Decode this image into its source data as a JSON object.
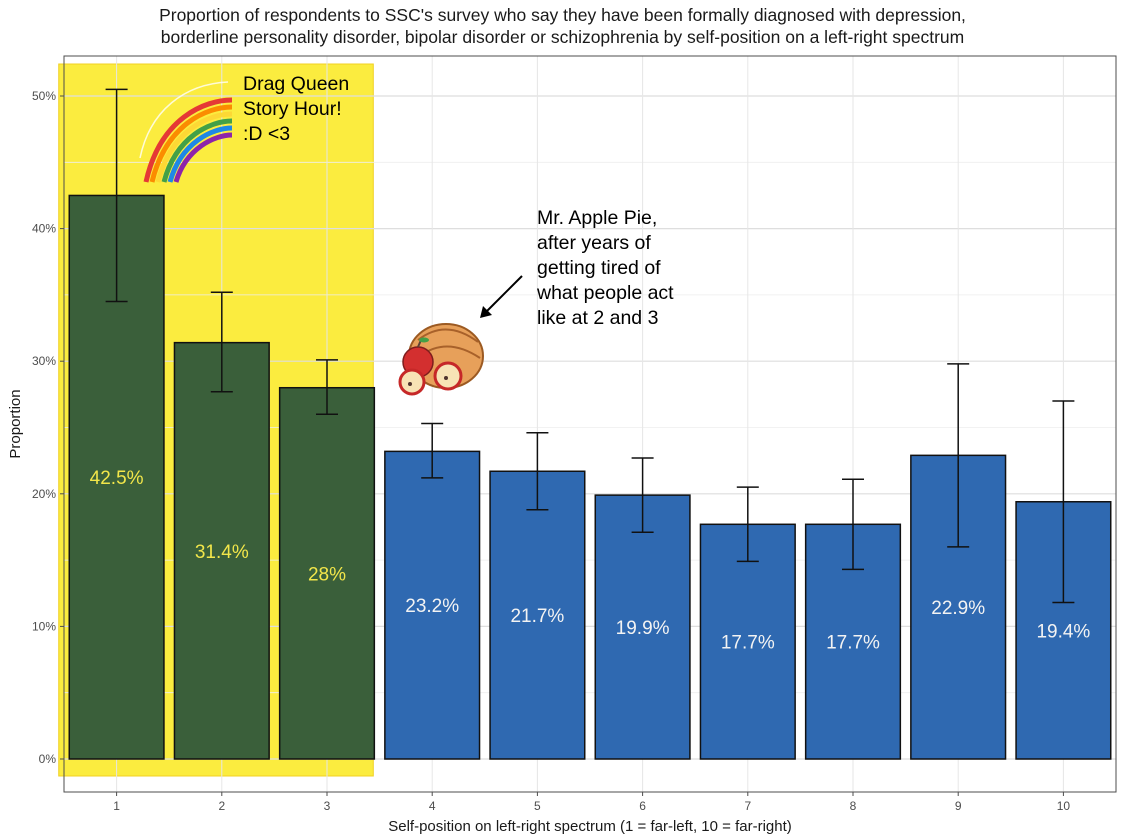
{
  "chart_data": {
    "type": "bar",
    "title": [
      "Proportion of respondents to SSC's survey who say they have been formally diagnosed with depression,",
      "borderline personality disorder, bipolar disorder or schizophrenia by self-position on a left-right spectrum"
    ],
    "xlabel": "Self-position on left-right spectrum (1 = far-left, 10 = far-right)",
    "ylabel": "Proportion",
    "categories": [
      "1",
      "2",
      "3",
      "4",
      "5",
      "6",
      "7",
      "8",
      "9",
      "10"
    ],
    "values": [
      42.5,
      31.4,
      28.0,
      23.2,
      21.7,
      19.9,
      17.7,
      17.7,
      22.9,
      19.4
    ],
    "value_labels": [
      "42.5%",
      "31.4%",
      "28%",
      "23.2%",
      "21.7%",
      "19.9%",
      "17.7%",
      "17.7%",
      "22.9%",
      "19.4%"
    ],
    "error_low": [
      34.5,
      27.7,
      26.0,
      21.2,
      18.8,
      17.1,
      14.9,
      14.3,
      16.0,
      11.8
    ],
    "error_high": [
      50.5,
      35.2,
      30.1,
      25.3,
      24.6,
      22.7,
      20.5,
      21.1,
      29.8,
      27.0
    ],
    "bar_colors": [
      "#3a5f3a",
      "#3a5f3a",
      "#3a5f3a",
      "#2f69b1",
      "#2f69b1",
      "#2f69b1",
      "#2f69b1",
      "#2f69b1",
      "#2f69b1",
      "#2f69b1"
    ],
    "label_colors": [
      "#f2e64a",
      "#f2e64a",
      "#f2e64a",
      "#f3f3f3",
      "#f3f3f3",
      "#f3f3f3",
      "#f3f3f3",
      "#f3f3f3",
      "#f3f3f3",
      "#f3f3f3"
    ],
    "highlight": {
      "categories": [
        "1",
        "2",
        "3"
      ],
      "color": "#fbec3f"
    },
    "ylim": [
      0,
      52
    ],
    "yticks": [
      0,
      10,
      20,
      30,
      40,
      50
    ],
    "ytick_labels": [
      "0%",
      "10%",
      "20%",
      "30%",
      "40%",
      "50%"
    ],
    "grid": true
  },
  "annotations": {
    "left_note": [
      "Drag Queen",
      "Story Hour!",
      ":D <3"
    ],
    "right_note": [
      "Mr. Apple Pie,",
      "after years of",
      "getting tired of",
      "what people act",
      "like at 2 and 3"
    ],
    "rainbow_icon": "rainbow-icon",
    "pie_icon": "apple-pie-icon"
  }
}
